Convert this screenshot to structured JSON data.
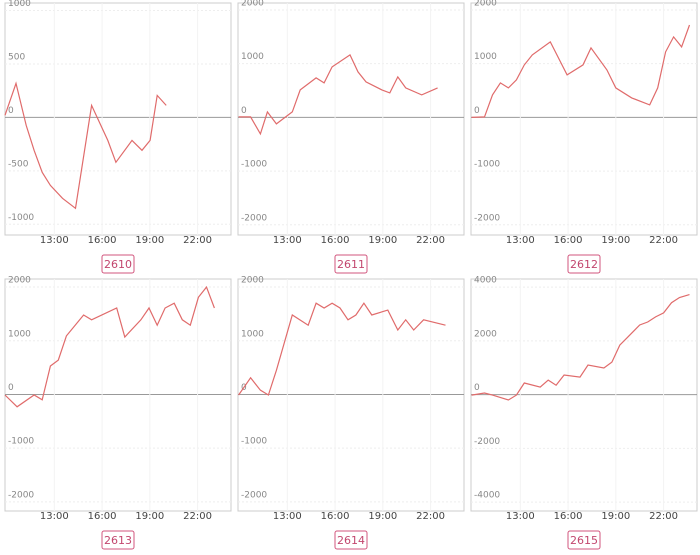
{
  "chart_data": [
    {
      "type": "line",
      "title": "2610",
      "color": "#e06b6b",
      "grid": true,
      "x": [
        9.9,
        10.59,
        11.23,
        11.73,
        12.24,
        12.75,
        13.51,
        14.33,
        15.34,
        16.36,
        16.87,
        17.88,
        18.51,
        19.02,
        19.46,
        20.03
      ],
      "values": [
        20,
        318,
        -75,
        -308,
        -514,
        -636,
        -757,
        -850,
        112,
        -215,
        -420,
        -215,
        -308,
        -215,
        206,
        112
      ],
      "xlim": [
        9.9,
        24.1
      ],
      "ylim": [
        -1100,
        1070
      ],
      "xticks": [
        {
          "value": 13,
          "label": "13:00"
        },
        {
          "value": 16,
          "label": "16:00"
        },
        {
          "value": 19,
          "label": "19:00"
        },
        {
          "value": 22,
          "label": "22:00"
        }
      ],
      "yticks": [
        -1000,
        -500,
        0,
        500,
        1000
      ]
    },
    {
      "type": "line",
      "title": "2611",
      "color": "#e06b6b",
      "grid": true,
      "x": [
        9.94,
        10.69,
        11.31,
        11.75,
        12.31,
        13.31,
        13.81,
        14.81,
        15.31,
        15.81,
        16.94,
        17.44,
        17.94,
        18.94,
        19.44,
        19.94,
        20.44,
        21.44,
        22.44
      ],
      "values": [
        10,
        10,
        -307,
        102,
        -121,
        102,
        512,
        735,
        642,
        940,
        1163,
        847,
        660,
        512,
        456,
        753,
        549,
        419,
        549
      ],
      "xlim": [
        9.9,
        24.1
      ],
      "ylim": [
        -2190,
        2130
      ],
      "xticks": [
        {
          "value": 13,
          "label": "13:00"
        },
        {
          "value": 16,
          "label": "16:00"
        },
        {
          "value": 19,
          "label": "19:00"
        },
        {
          "value": 22,
          "label": "22:00"
        }
      ],
      "yticks": [
        -2000,
        -1000,
        0,
        1000,
        2000
      ]
    },
    {
      "type": "line",
      "title": "2612",
      "color": "#e06b6b",
      "grid": true,
      "x": [
        9.94,
        10.75,
        11.25,
        11.75,
        12.25,
        12.75,
        13.25,
        13.75,
        14.88,
        15.94,
        16.94,
        17.44,
        18.44,
        19.0,
        20.0,
        21.13,
        21.63,
        22.13,
        22.63,
        23.13,
        23.63
      ],
      "values": [
        0,
        10,
        419,
        642,
        549,
        698,
        977,
        1163,
        1405,
        791,
        977,
        1293,
        884,
        549,
        363,
        233,
        549,
        1219,
        1498,
        1312,
        1721
      ],
      "xlim": [
        9.9,
        24.1
      ],
      "ylim": [
        -2190,
        2130
      ],
      "xticks": [
        {
          "value": 13,
          "label": "13:00"
        },
        {
          "value": 16,
          "label": "16:00"
        },
        {
          "value": 19,
          "label": "19:00"
        },
        {
          "value": 22,
          "label": "22:00"
        }
      ],
      "yticks": [
        -2000,
        -1000,
        0,
        1000,
        2000
      ]
    },
    {
      "type": "line",
      "title": "2613",
      "color": "#e06b6b",
      "grid": true,
      "x": [
        9.9,
        10.66,
        11.73,
        12.24,
        12.75,
        13.25,
        13.76,
        14.84,
        15.34,
        16.92,
        17.43,
        18.44,
        18.95,
        19.46,
        19.96,
        20.53,
        21.04,
        21.54,
        22.05,
        22.56,
        23.06
      ],
      "values": [
        -10,
        -230,
        -10,
        -100,
        530,
        640,
        1090,
        1480,
        1390,
        1610,
        1070,
        1390,
        1610,
        1290,
        1610,
        1700,
        1390,
        1290,
        1810,
        2000,
        1610
      ],
      "xlim": [
        9.9,
        24.1
      ],
      "ylim": [
        -2170,
        2150
      ],
      "xticks": [
        {
          "value": 13,
          "label": "13:00"
        },
        {
          "value": 16,
          "label": "16:00"
        },
        {
          "value": 19,
          "label": "19:00"
        },
        {
          "value": 22,
          "label": "22:00"
        }
      ],
      "yticks": [
        -2000,
        -1000,
        0,
        1000,
        2000
      ]
    },
    {
      "type": "line",
      "title": "2614",
      "color": "#e06b6b",
      "grid": true,
      "x": [
        9.94,
        10.69,
        11.31,
        11.81,
        12.31,
        13.31,
        14.31,
        14.81,
        15.31,
        15.81,
        16.31,
        16.81,
        17.31,
        17.81,
        18.31,
        19.31,
        19.94,
        20.44,
        20.94,
        21.56,
        22.94
      ],
      "values": [
        -10,
        310,
        80,
        -10,
        450,
        1480,
        1290,
        1700,
        1610,
        1700,
        1610,
        1390,
        1480,
        1700,
        1480,
        1570,
        1200,
        1390,
        1200,
        1390,
        1290
      ],
      "xlim": [
        9.9,
        24.1
      ],
      "ylim": [
        -2170,
        2150
      ],
      "xticks": [
        {
          "value": 13,
          "label": "13:00"
        },
        {
          "value": 16,
          "label": "16:00"
        },
        {
          "value": 19,
          "label": "19:00"
        },
        {
          "value": 22,
          "label": "22:00"
        }
      ],
      "yticks": [
        -2000,
        -1000,
        0,
        1000,
        2000
      ]
    },
    {
      "type": "line",
      "title": "2615",
      "color": "#e06b6b",
      "grid": true,
      "x": [
        9.94,
        10.75,
        11.25,
        12.25,
        12.75,
        13.25,
        14.25,
        14.75,
        15.25,
        15.75,
        16.75,
        17.25,
        18.25,
        18.75,
        19.25,
        19.75,
        20.5,
        21.0,
        21.5,
        22.0,
        22.5,
        23.0,
        23.63
      ],
      "values": [
        -20,
        60,
        -20,
        -200,
        -20,
        430,
        280,
        540,
        350,
        730,
        650,
        1100,
        990,
        1210,
        1840,
        2140,
        2590,
        2700,
        2890,
        3040,
        3420,
        3610,
        3720
      ],
      "xlim": [
        9.9,
        24.1
      ],
      "ylim": [
        -4330,
        4300
      ],
      "xticks": [
        {
          "value": 13,
          "label": "13:00"
        },
        {
          "value": 16,
          "label": "16:00"
        },
        {
          "value": 19,
          "label": "19:00"
        },
        {
          "value": 22,
          "label": "22:00"
        }
      ],
      "yticks": [
        -4000,
        -2000,
        0,
        2000,
        4000
      ]
    }
  ]
}
